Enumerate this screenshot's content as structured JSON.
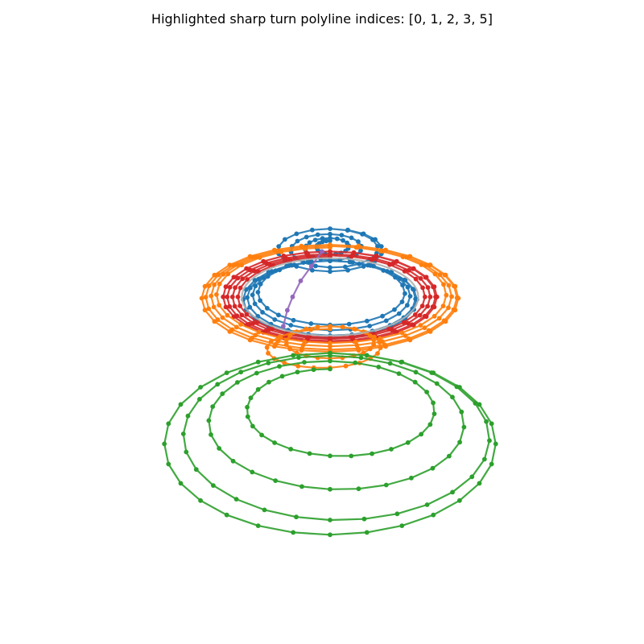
{
  "chart_data": {
    "type": "line",
    "projection": "3d",
    "title": "Highlighted sharp turn polyline indices: [0, 1, 2, 3, 5]",
    "highlighted_indices": [
      0,
      1,
      2,
      3,
      5
    ],
    "axes_visible": false,
    "grid": false,
    "legend": "none",
    "series": [
      {
        "index": 0,
        "color": "#1f77b4",
        "highlighted": true,
        "points_per_turn": 18,
        "turns": [
          {
            "cx": 0.0,
            "cy": 1.08,
            "rx": 0.08,
            "ry": 0.04
          },
          {
            "cx": 0.0,
            "cy": 1.07,
            "rx": 0.16,
            "ry": 0.07
          },
          {
            "cx": 0.0,
            "cy": 1.06,
            "rx": 0.26,
            "ry": 0.11
          },
          {
            "cx": 0.0,
            "cy": 1.05,
            "rx": 0.39,
            "ry": 0.16
          }
        ]
      },
      {
        "index": 1,
        "color": "#1f77b4",
        "highlighted": true,
        "points_per_turn": 24,
        "turns": [
          {
            "cx": 0.0,
            "cy": 0.74,
            "rx": 0.53,
            "ry": 0.23
          },
          {
            "cx": 0.0,
            "cy": 0.72,
            "rx": 0.57,
            "ry": 0.25
          },
          {
            "cx": 0.0,
            "cy": 0.7,
            "rx": 0.61,
            "ry": 0.27
          },
          {
            "cx": 0.0,
            "cy": 0.68,
            "rx": 0.65,
            "ry": 0.29
          }
        ]
      },
      {
        "index": 2,
        "color": "#d62728",
        "highlighted": true,
        "points_per_turn": 28,
        "turns": [
          {
            "cx": 0.0,
            "cy": 0.7,
            "rx": 0.68,
            "ry": 0.3
          },
          {
            "cx": 0.0,
            "cy": 0.7,
            "rx": 0.72,
            "ry": 0.31
          },
          {
            "cx": 0.0,
            "cy": 0.7,
            "rx": 0.76,
            "ry": 0.32
          },
          {
            "cx": 0.0,
            "cy": 0.7,
            "rx": 0.8,
            "ry": 0.34
          }
        ]
      },
      {
        "index": 3,
        "color": "#ff7f0e",
        "highlighted": true,
        "points_per_turn": 28,
        "turns": [
          {
            "cx": 0.0,
            "cy": 0.72,
            "rx": 0.84,
            "ry": 0.35
          },
          {
            "cx": 0.0,
            "cy": 0.71,
            "rx": 0.88,
            "ry": 0.37
          },
          {
            "cx": 0.0,
            "cy": 0.7,
            "rx": 0.92,
            "ry": 0.38
          },
          {
            "cx": 0.0,
            "cy": 0.69,
            "rx": 0.96,
            "ry": 0.4
          }
        ]
      },
      {
        "index": 4,
        "color": "#9467bd",
        "highlighted": false,
        "points_per_turn": 0,
        "path": [
          [
            -0.06,
            1.04
          ],
          [
            -0.14,
            0.93
          ],
          [
            -0.22,
            0.82
          ],
          [
            -0.28,
            0.7
          ],
          [
            -0.32,
            0.6
          ],
          [
            -0.35,
            0.48
          ]
        ]
      },
      {
        "index": 5,
        "color": "#ff7f0e",
        "highlighted": true,
        "points_per_turn": 22,
        "turns": [
          {
            "cx": 0.0,
            "cy": 0.28,
            "rx": 0.52,
            "ry": 0.18
          },
          {
            "cx": 0.0,
            "cy": 0.36,
            "rx": 0.33,
            "ry": 0.12
          }
        ]
      },
      {
        "index": 6,
        "color": "#2ca02c",
        "highlighted": false,
        "points_per_turn": 28,
        "turns": [
          {
            "cx": 0.0,
            "cy": -0.1,
            "rx": 0.54,
            "ry": 0.26
          },
          {
            "cx": 0.0,
            "cy": -0.2,
            "rx": 0.86,
            "ry": 0.42
          },
          {
            "cx": 0.0,
            "cy": -0.3,
            "rx": 1.05,
            "ry": 0.56
          },
          {
            "cx": 0.0,
            "cy": -0.4,
            "rx": 1.24,
            "ry": 0.68
          }
        ]
      },
      {
        "index": 7,
        "color": "#b0b0b0",
        "highlighted": false,
        "points_per_turn": 0,
        "turns": [
          {
            "cx": 0.0,
            "cy": 0.7,
            "rx": 0.66,
            "ry": 0.29
          }
        ]
      }
    ]
  }
}
